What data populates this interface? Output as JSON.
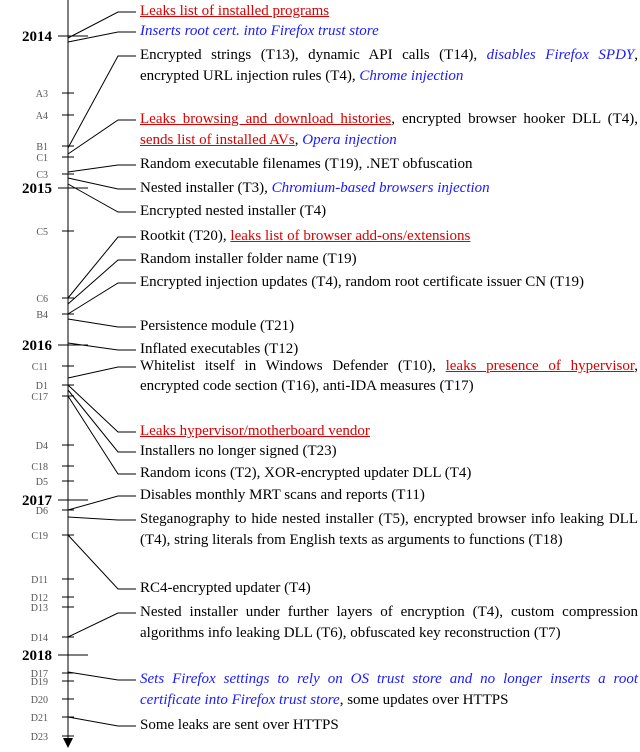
{
  "years": [
    {
      "label": "2014"
    },
    {
      "label": "2015"
    },
    {
      "label": "2016"
    },
    {
      "label": "2017"
    },
    {
      "label": "2018"
    }
  ],
  "markers": [
    {
      "label": "A3"
    },
    {
      "label": "A4"
    },
    {
      "label": "B1"
    },
    {
      "label": "C1"
    },
    {
      "label": "C3"
    },
    {
      "label": "C5"
    },
    {
      "label": "C6"
    },
    {
      "label": "B4"
    },
    {
      "label": "C11"
    },
    {
      "label": "D1"
    },
    {
      "label": "C17"
    },
    {
      "label": "D4"
    },
    {
      "label": "C18"
    },
    {
      "label": "D5"
    },
    {
      "label": "D6"
    },
    {
      "label": "C19"
    },
    {
      "label": "D11"
    },
    {
      "label": "D12"
    },
    {
      "label": "D13"
    },
    {
      "label": "D14"
    },
    {
      "label": "D17"
    },
    {
      "label": "D19"
    },
    {
      "label": "D20"
    },
    {
      "label": "D21"
    },
    {
      "label": "D23"
    }
  ],
  "entries": [
    {
      "parts": [
        {
          "text": "Leaks list of installed programs",
          "style": "leak"
        }
      ]
    },
    {
      "parts": [
        {
          "text": "Inserts root cert. into Firefox trust store",
          "style": "browser"
        }
      ]
    },
    {
      "parts": [
        {
          "text": "Encrypted strings (T13), dynamic API calls (T14), ",
          "style": "plain"
        },
        {
          "text": "disables Firefox SPDY",
          "style": "browser"
        },
        {
          "text": ", encrypted URL injection rules (T4), ",
          "style": "plain"
        },
        {
          "text": "Chrome injection",
          "style": "browser"
        }
      ]
    },
    {
      "parts": [
        {
          "text": "Leaks browsing and download histories",
          "style": "leak"
        },
        {
          "text": ", encrypted browser hooker DLL (T4), ",
          "style": "plain"
        },
        {
          "text": "sends list of installed AVs",
          "style": "leak"
        },
        {
          "text": ", ",
          "style": "plain"
        },
        {
          "text": "Opera injection",
          "style": "browser"
        }
      ]
    },
    {
      "parts": [
        {
          "text": "Random executable filenames (T19), .NET obfuscation",
          "style": "plain"
        }
      ]
    },
    {
      "parts": [
        {
          "text": "Nested installer (T3), ",
          "style": "plain"
        },
        {
          "text": "Chromium-based browsers injection",
          "style": "browser"
        }
      ]
    },
    {
      "parts": [
        {
          "text": "Encrypted nested installer (T4)",
          "style": "plain"
        }
      ]
    },
    {
      "parts": [
        {
          "text": "Rootkit (T20), ",
          "style": "plain"
        },
        {
          "text": "leaks list of browser add-ons/extensions",
          "style": "leak"
        }
      ]
    },
    {
      "parts": [
        {
          "text": "Random installer folder name (T19)",
          "style": "plain"
        }
      ]
    },
    {
      "parts": [
        {
          "text": "Encrypted injection updates (T4), random root certificate issuer CN (T19)",
          "style": "plain"
        }
      ]
    },
    {
      "parts": [
        {
          "text": "Persistence module (T21)",
          "style": "plain"
        }
      ]
    },
    {
      "parts": [
        {
          "text": "Inflated executables (T12)",
          "style": "plain"
        }
      ]
    },
    {
      "parts": [
        {
          "text": "Whitelist itself in Windows Defender (T10), ",
          "style": "plain"
        },
        {
          "text": "leaks presence of hypervisor",
          "style": "leak"
        },
        {
          "text": ", encrypted code section (T16), anti-IDA measures (T17)",
          "style": "plain"
        }
      ]
    },
    {
      "parts": [
        {
          "text": "Leaks hypervisor/motherboard vendor",
          "style": "leak"
        }
      ]
    },
    {
      "parts": [
        {
          "text": "Installers no longer signed (T23)",
          "style": "plain"
        }
      ]
    },
    {
      "parts": [
        {
          "text": "Random icons (T2), XOR-encrypted updater DLL (T4)",
          "style": "plain"
        }
      ]
    },
    {
      "parts": [
        {
          "text": "Disables monthly MRT scans and reports (T11)",
          "style": "plain"
        }
      ]
    },
    {
      "parts": [
        {
          "text": "Steganography to hide nested installer (T5), encrypted browser info leaking DLL (T4), string literals from English texts as arguments to functions (T18)",
          "style": "plain"
        }
      ]
    },
    {
      "parts": [
        {
          "text": "RC4-encrypted updater (T4)",
          "style": "plain"
        }
      ]
    },
    {
      "parts": [
        {
          "text": "Nested installer under further layers of encryption (T4), custom compression algorithms info leaking DLL (T6), obfuscated key reconstruction (T7)",
          "style": "plain"
        }
      ]
    },
    {
      "parts": [
        {
          "text": "Sets Firefox settings to rely on OS trust store and no longer inserts a root certificate into Firefox trust store",
          "style": "browser"
        },
        {
          "text": ", some updates over HTTPS",
          "style": "plain"
        }
      ]
    },
    {
      "parts": [
        {
          "text": "Some leaks are sent over HTTPS",
          "style": "plain"
        }
      ]
    }
  ]
}
